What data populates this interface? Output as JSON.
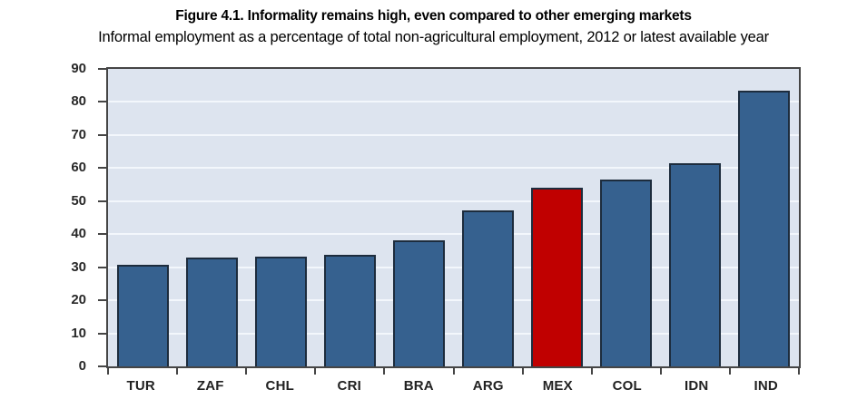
{
  "chart_data": {
    "type": "bar",
    "title": "Figure 4.1. Informality remains high, even compared to other emerging markets",
    "subtitle": "Informal employment as a percentage of total non-agricultural employment, 2012 or latest available year",
    "categories": [
      "TUR",
      "ZAF",
      "CHL",
      "CRI",
      "BRA",
      "ARG",
      "MEX",
      "COL",
      "IDN",
      "IND"
    ],
    "values": [
      30.7,
      32.8,
      33.3,
      33.8,
      38.1,
      47.2,
      54.1,
      56.5,
      61.6,
      83.4
    ],
    "highlight_category": "MEX",
    "xlabel": "",
    "ylabel": "",
    "ylim": [
      0,
      90
    ],
    "yticks": [
      0,
      10,
      20,
      30,
      40,
      50,
      60,
      70,
      80,
      90
    ],
    "grid": true,
    "legend": false,
    "colors": {
      "bar": "#36618f",
      "bar_border": "#1d2c3d",
      "highlight": "#c00000",
      "highlight_border": "#1d2c3d",
      "plot_bg": "#dde4ef",
      "gridline": "#f3f7fc",
      "axis": "#454545",
      "text": "#222222"
    }
  }
}
